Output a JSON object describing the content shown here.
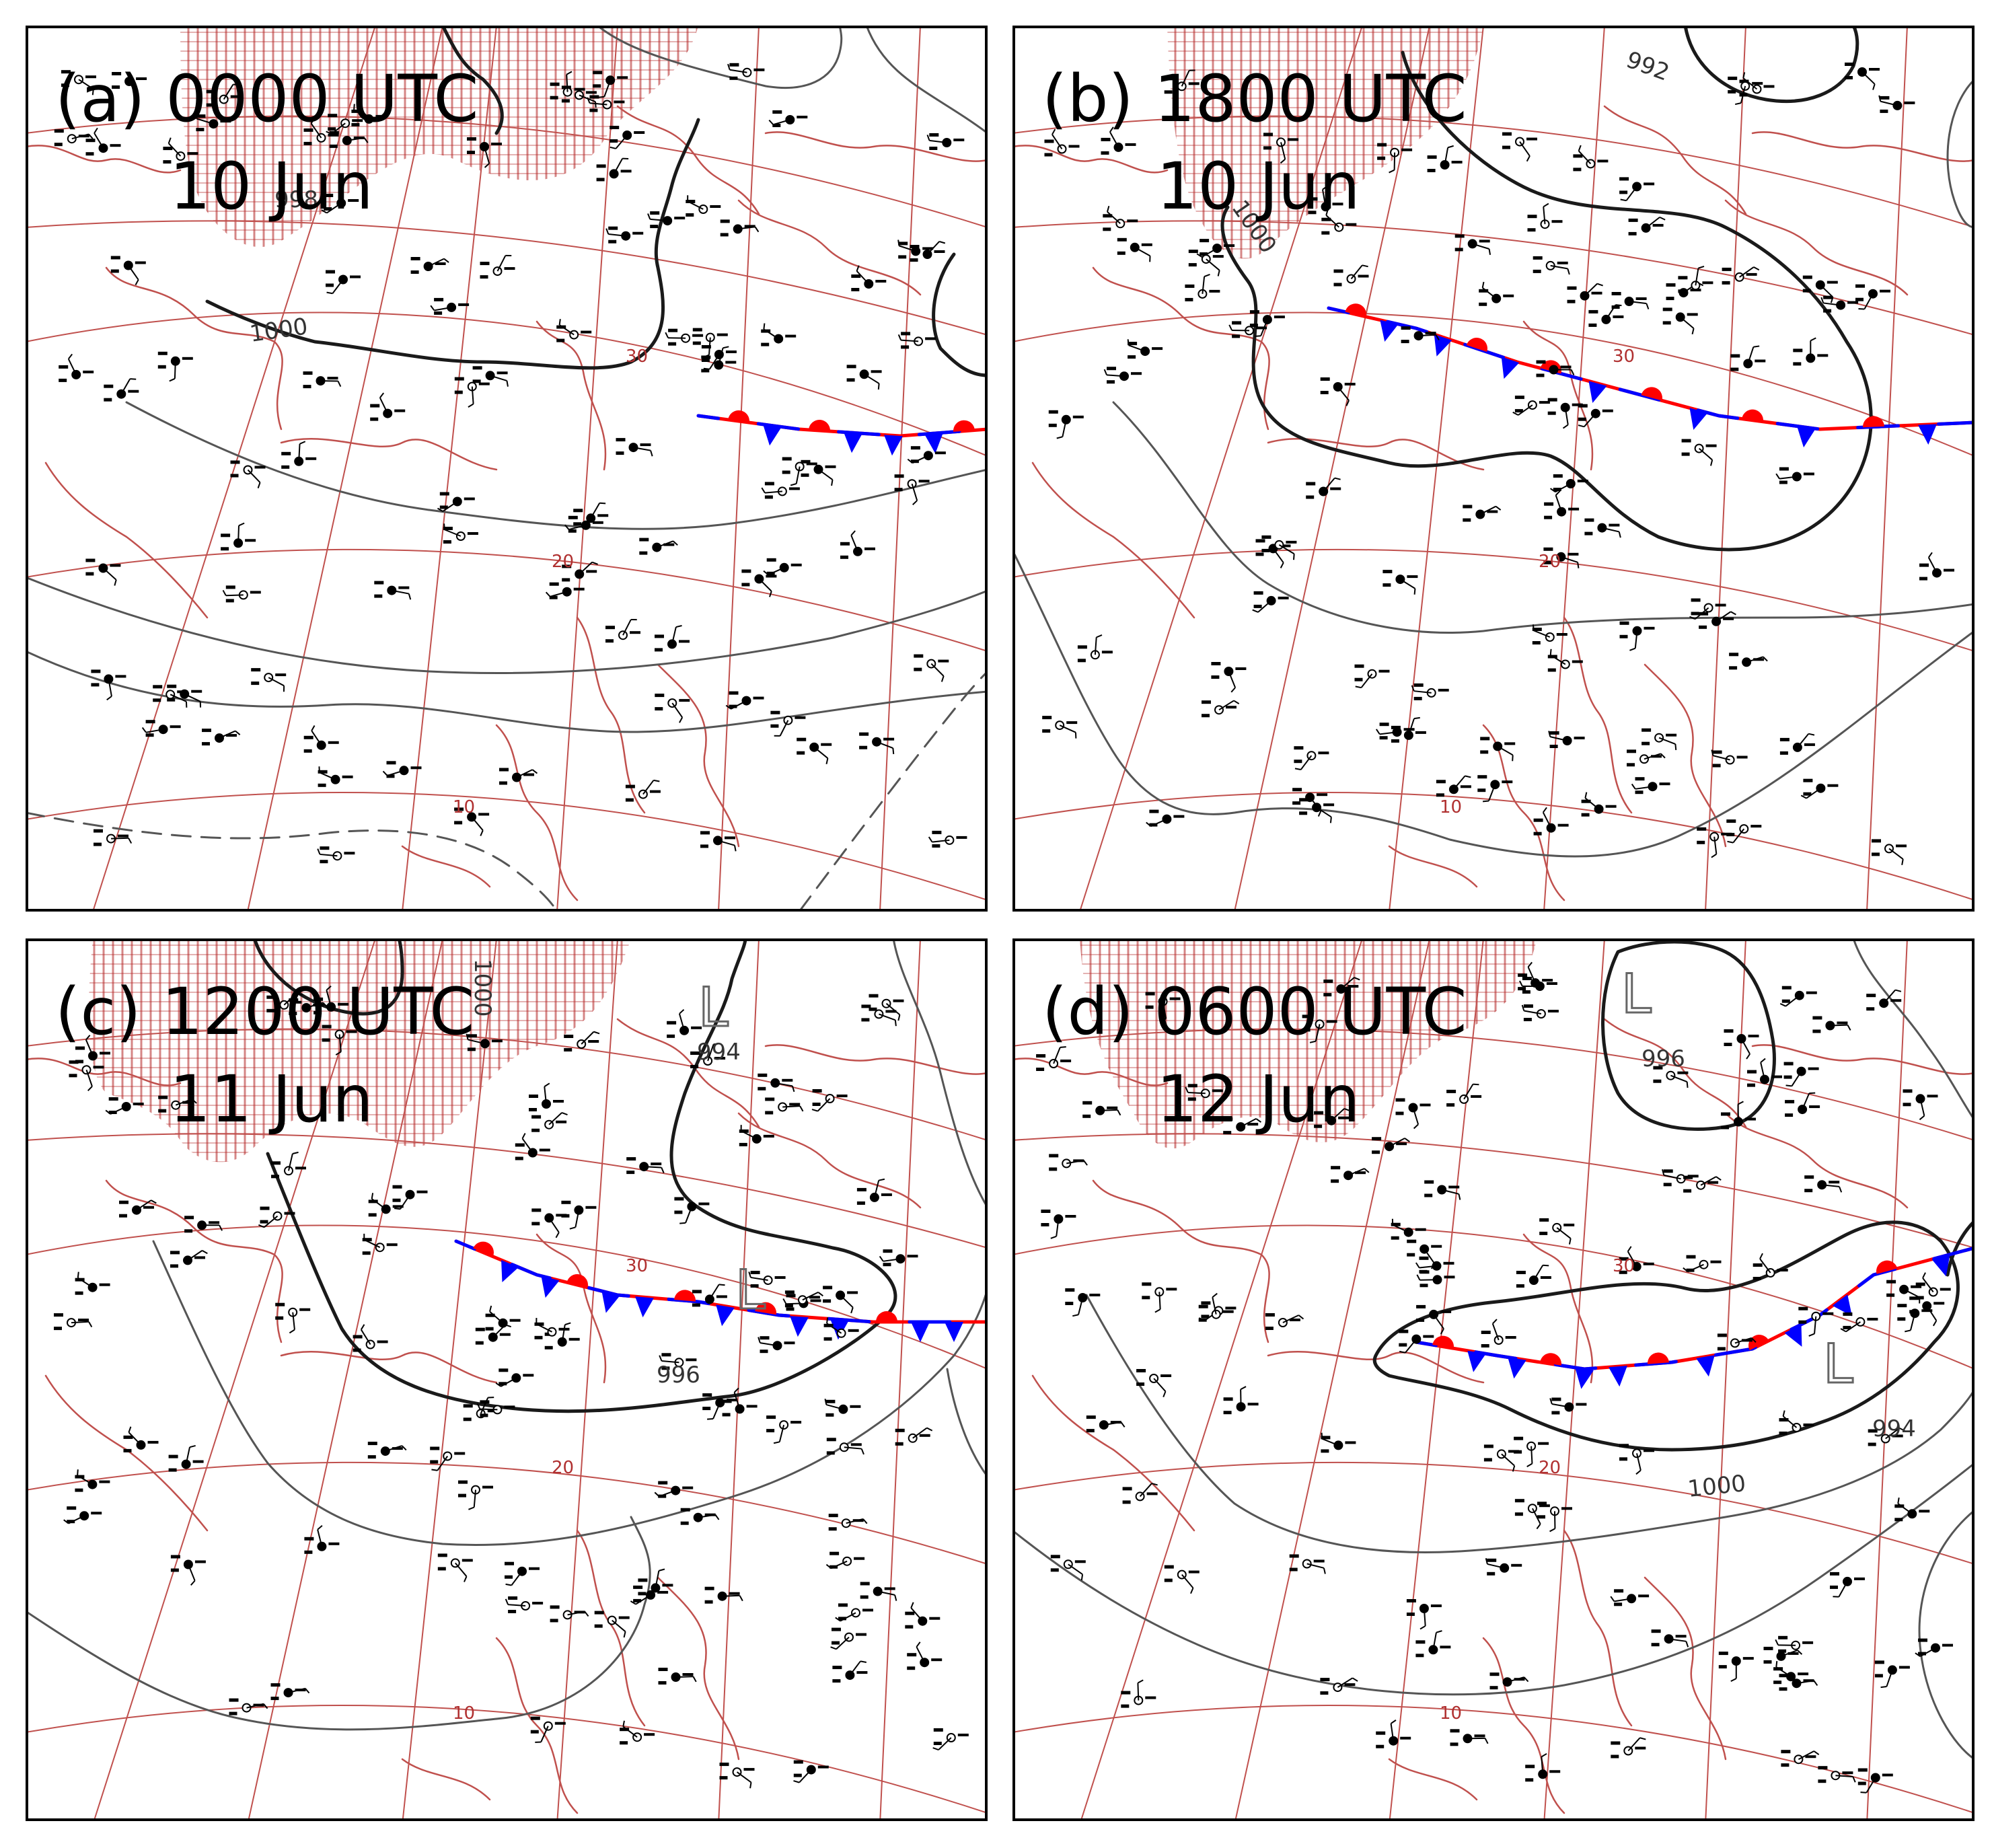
{
  "panels": [
    {
      "id": "a",
      "tag": "(a)",
      "time": "0000 UTC",
      "date": "10 Jun",
      "isobar_labels": [
        "998",
        "1000"
      ],
      "lows": []
    },
    {
      "id": "b",
      "tag": "(b)",
      "time": "1800 UTC",
      "date": "10 Jun",
      "isobar_labels": [
        "992",
        "1000"
      ],
      "lows": []
    },
    {
      "id": "c",
      "tag": "(c)",
      "time": "1200 UTC",
      "date": "11 Jun",
      "isobar_labels": [
        "994",
        "996",
        "1000"
      ],
      "lows": [
        "L",
        "L"
      ]
    },
    {
      "id": "d",
      "tag": "(d)",
      "time": "0600 UTC",
      "date": "12 Jun",
      "isobar_labels": [
        "996",
        "994",
        "1000"
      ],
      "lows": [
        "L",
        "L"
      ]
    }
  ],
  "grid_labels": [
    "10",
    "20",
    "30"
  ],
  "colors": {
    "grid": "#c0504d",
    "coast": "#c0504d",
    "hatch": "#b22222",
    "isobar": "#1a1a1a",
    "isobar_light": "#555555",
    "warm_front": "#ff0000",
    "cold_front": "#0000ff",
    "frame": "#000000"
  },
  "legend_icons": [
    "station-plot-icon",
    "warm-front-icon",
    "cold-front-icon",
    "low-pressure-icon"
  ]
}
